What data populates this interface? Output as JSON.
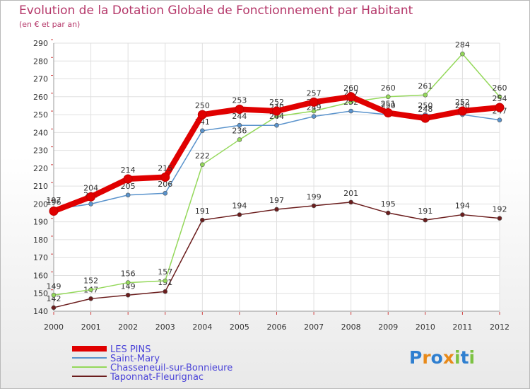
{
  "chart_data": {
    "type": "line",
    "title": "Evolution de la Dotation Globale de Fonctionnement par Habitant",
    "subtitle": "(en € et par an)",
    "xlabel": "",
    "ylabel": "",
    "ylim": [
      140,
      290
    ],
    "yticks": [
      140,
      150,
      160,
      170,
      180,
      190,
      200,
      210,
      220,
      230,
      240,
      250,
      260,
      270,
      280,
      290
    ],
    "categories": [
      "2000",
      "2001",
      "2002",
      "2003",
      "2004",
      "2005",
      "2006",
      "2007",
      "2008",
      "2009",
      "2010",
      "2011",
      "2012"
    ],
    "series": [
      {
        "name": "Taponnat-Fleurignac",
        "color": "#6b1d1d",
        "values": [
          142,
          147,
          149,
          151,
          191,
          194,
          197,
          199,
          201,
          195,
          191,
          194,
          192
        ]
      },
      {
        "name": "Chasseneuil-sur-Bonnieure",
        "color": "#94d85a",
        "values": [
          149,
          152,
          156,
          157,
          222,
          236,
          249,
          252,
          257,
          260,
          261,
          284,
          260
        ]
      },
      {
        "name": "Saint-Mary",
        "color": "#5a93cc",
        "values": [
          197,
          200,
          205,
          206,
          241,
          244,
          244,
          249,
          252,
          250,
          250,
          250,
          247
        ]
      },
      {
        "name": "LES PINS",
        "color": "#e00000",
        "values": [
          196,
          204,
          214,
          215,
          250,
          253,
          252,
          257,
          260,
          251,
          248,
          252,
          254
        ]
      }
    ],
    "legend": [
      "LES PINS",
      "Saint-Mary",
      "Chasseneuil-sur-Bonnieure",
      "Taponnat-Fleurignac"
    ],
    "grid": true,
    "legend_position": "bottom-left"
  },
  "logo": {
    "text": "Proxiti",
    "letters": [
      "P",
      "r",
      "o",
      "x",
      "i",
      "t",
      "i"
    ],
    "colors": [
      "#2f7fd0",
      "#e88a1a",
      "#2f7fd0",
      "#e88a1a",
      "#7cc242",
      "#2f7fd0",
      "#7cc242"
    ]
  }
}
